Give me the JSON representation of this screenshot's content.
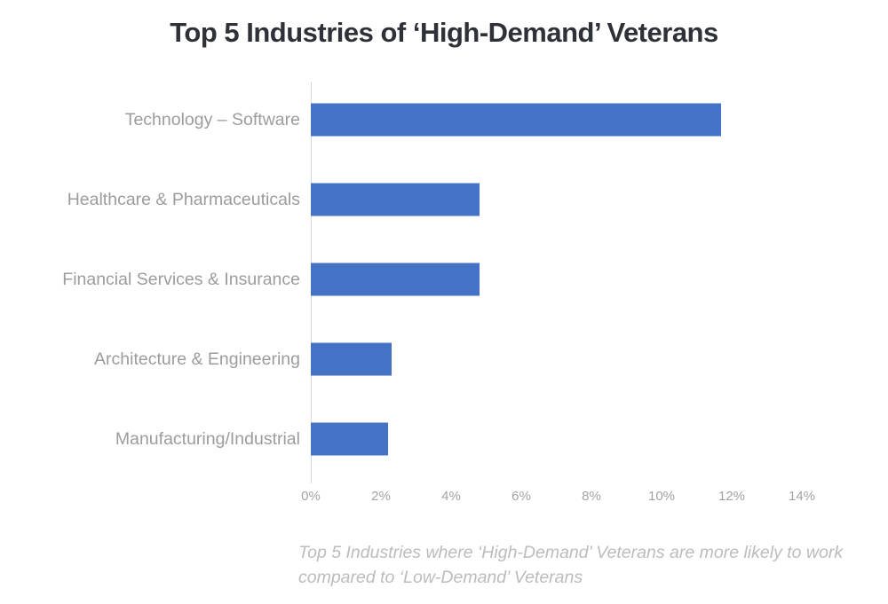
{
  "chart_data": {
    "type": "bar",
    "orientation": "horizontal",
    "title": "Top 5 Industries of ‘High-Demand’ Veterans",
    "caption": "Top 5 Industries where ‘High-Demand’ Veterans are more likely to work compared to ‘Low-Demand’ Veterans",
    "categories": [
      "Technology – Software",
      "Healthcare & Pharmaceuticals",
      "Financial Services & Insurance",
      "Architecture & Engineering",
      "Manufacturing/Industrial"
    ],
    "values": [
      11.7,
      4.8,
      4.8,
      2.3,
      2.2
    ],
    "unit": "%",
    "xlim": [
      0,
      14
    ],
    "xtick_values": [
      0,
      2,
      4,
      6,
      8,
      10,
      12,
      14
    ],
    "xtick_labels": [
      "0%",
      "2%",
      "4%",
      "6%",
      "8%",
      "10%",
      "12%",
      "14%"
    ],
    "grid": false,
    "legend": false,
    "bar_color": "#4472c4",
    "axis_line_color": "#d9d9d9",
    "label_color": "#9c9c9c",
    "tick_label_color": "#a3a3a3",
    "title_color": "#2e3137",
    "caption_color": "#bcbcbc"
  }
}
